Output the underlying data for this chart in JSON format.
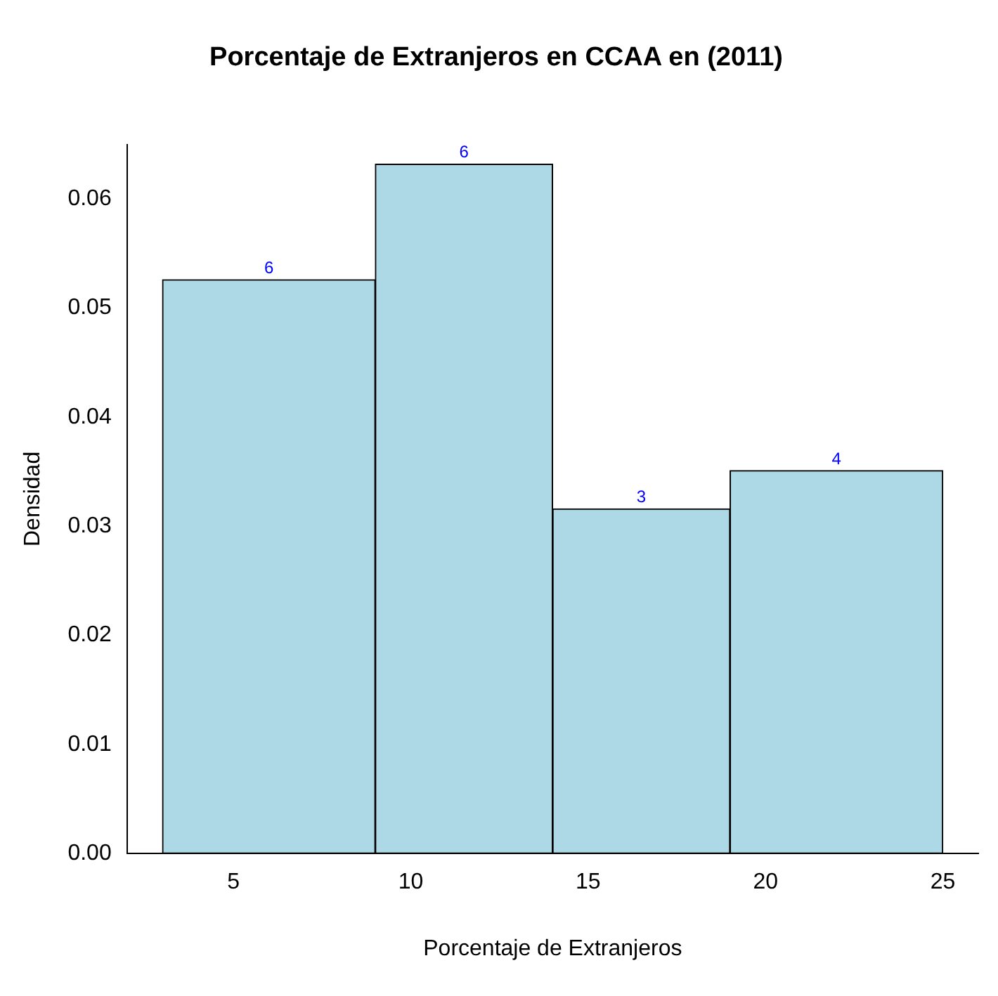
{
  "chart_data": {
    "type": "histogram",
    "title": "Porcentaje de Extranjeros en CCAA en (2011)",
    "xlabel": "Porcentaje de Extranjeros",
    "ylabel": "Densidad",
    "bins": [
      3,
      9,
      14,
      19,
      25
    ],
    "values": [
      0.0526,
      0.0632,
      0.0316,
      0.0351
    ],
    "annotations": [
      {
        "text": "6",
        "x": 6,
        "y": 0.0526
      },
      {
        "text": "6",
        "x": 11.5,
        "y": 0.0632
      },
      {
        "text": "3",
        "x": 16.5,
        "y": 0.0316
      },
      {
        "text": "4",
        "x": 22,
        "y": 0.0351
      }
    ],
    "color": "#add8e6",
    "xlim": [
      2,
      26
    ],
    "xticks": [
      5,
      10,
      15,
      20,
      25
    ],
    "ylim": [
      0,
      0.065
    ],
    "yticks": [
      {
        "value": 0,
        "label": "0.00"
      },
      {
        "value": 0.01,
        "label": "0.01"
      },
      {
        "value": 0.02,
        "label": "0.02"
      },
      {
        "value": 0.03,
        "label": "0.03"
      },
      {
        "value": 0.04,
        "label": "0.04"
      },
      {
        "value": 0.05,
        "label": "0.05"
      },
      {
        "value": 0.06,
        "label": "0.06"
      }
    ],
    "grid": false,
    "legend": false
  }
}
